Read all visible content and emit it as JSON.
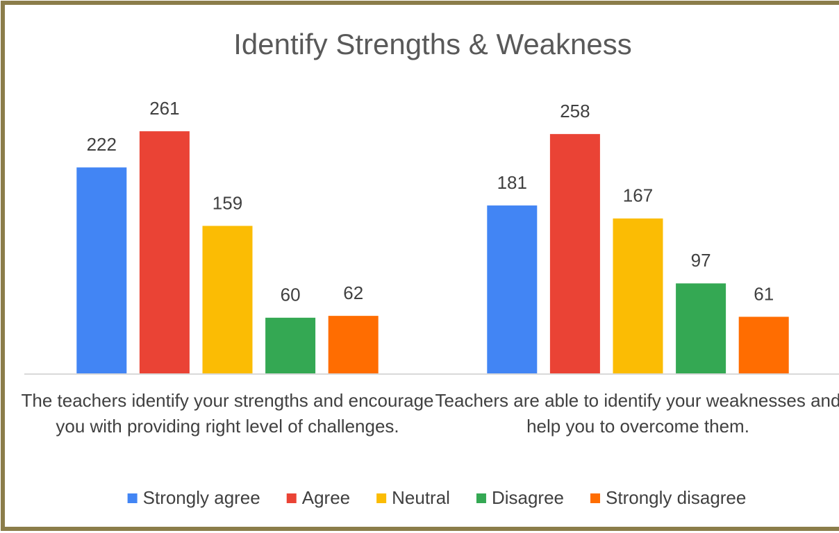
{
  "chart_data": {
    "type": "bar",
    "title": "Identify Strengths & Weakness",
    "categories": [
      "The teachers identify your strengths and encourage you with providing right level of challenges.",
      "Teachers are able to identify your weaknesses and help you to overcome them."
    ],
    "series": [
      {
        "name": "Strongly agree",
        "color": "#4285f4",
        "values": [
          222,
          181
        ]
      },
      {
        "name": "Agree",
        "color": "#ea4335",
        "values": [
          261,
          258
        ]
      },
      {
        "name": "Neutral",
        "color": "#fbbc04",
        "values": [
          159,
          167
        ]
      },
      {
        "name": "Disagree",
        "color": "#34a853",
        "values": [
          60,
          97
        ]
      },
      {
        "name": "Strongly disagree",
        "color": "#ff6d01",
        "values": [
          62,
          61
        ]
      }
    ],
    "ylim": [
      0,
      300
    ],
    "legend": "bottom"
  }
}
